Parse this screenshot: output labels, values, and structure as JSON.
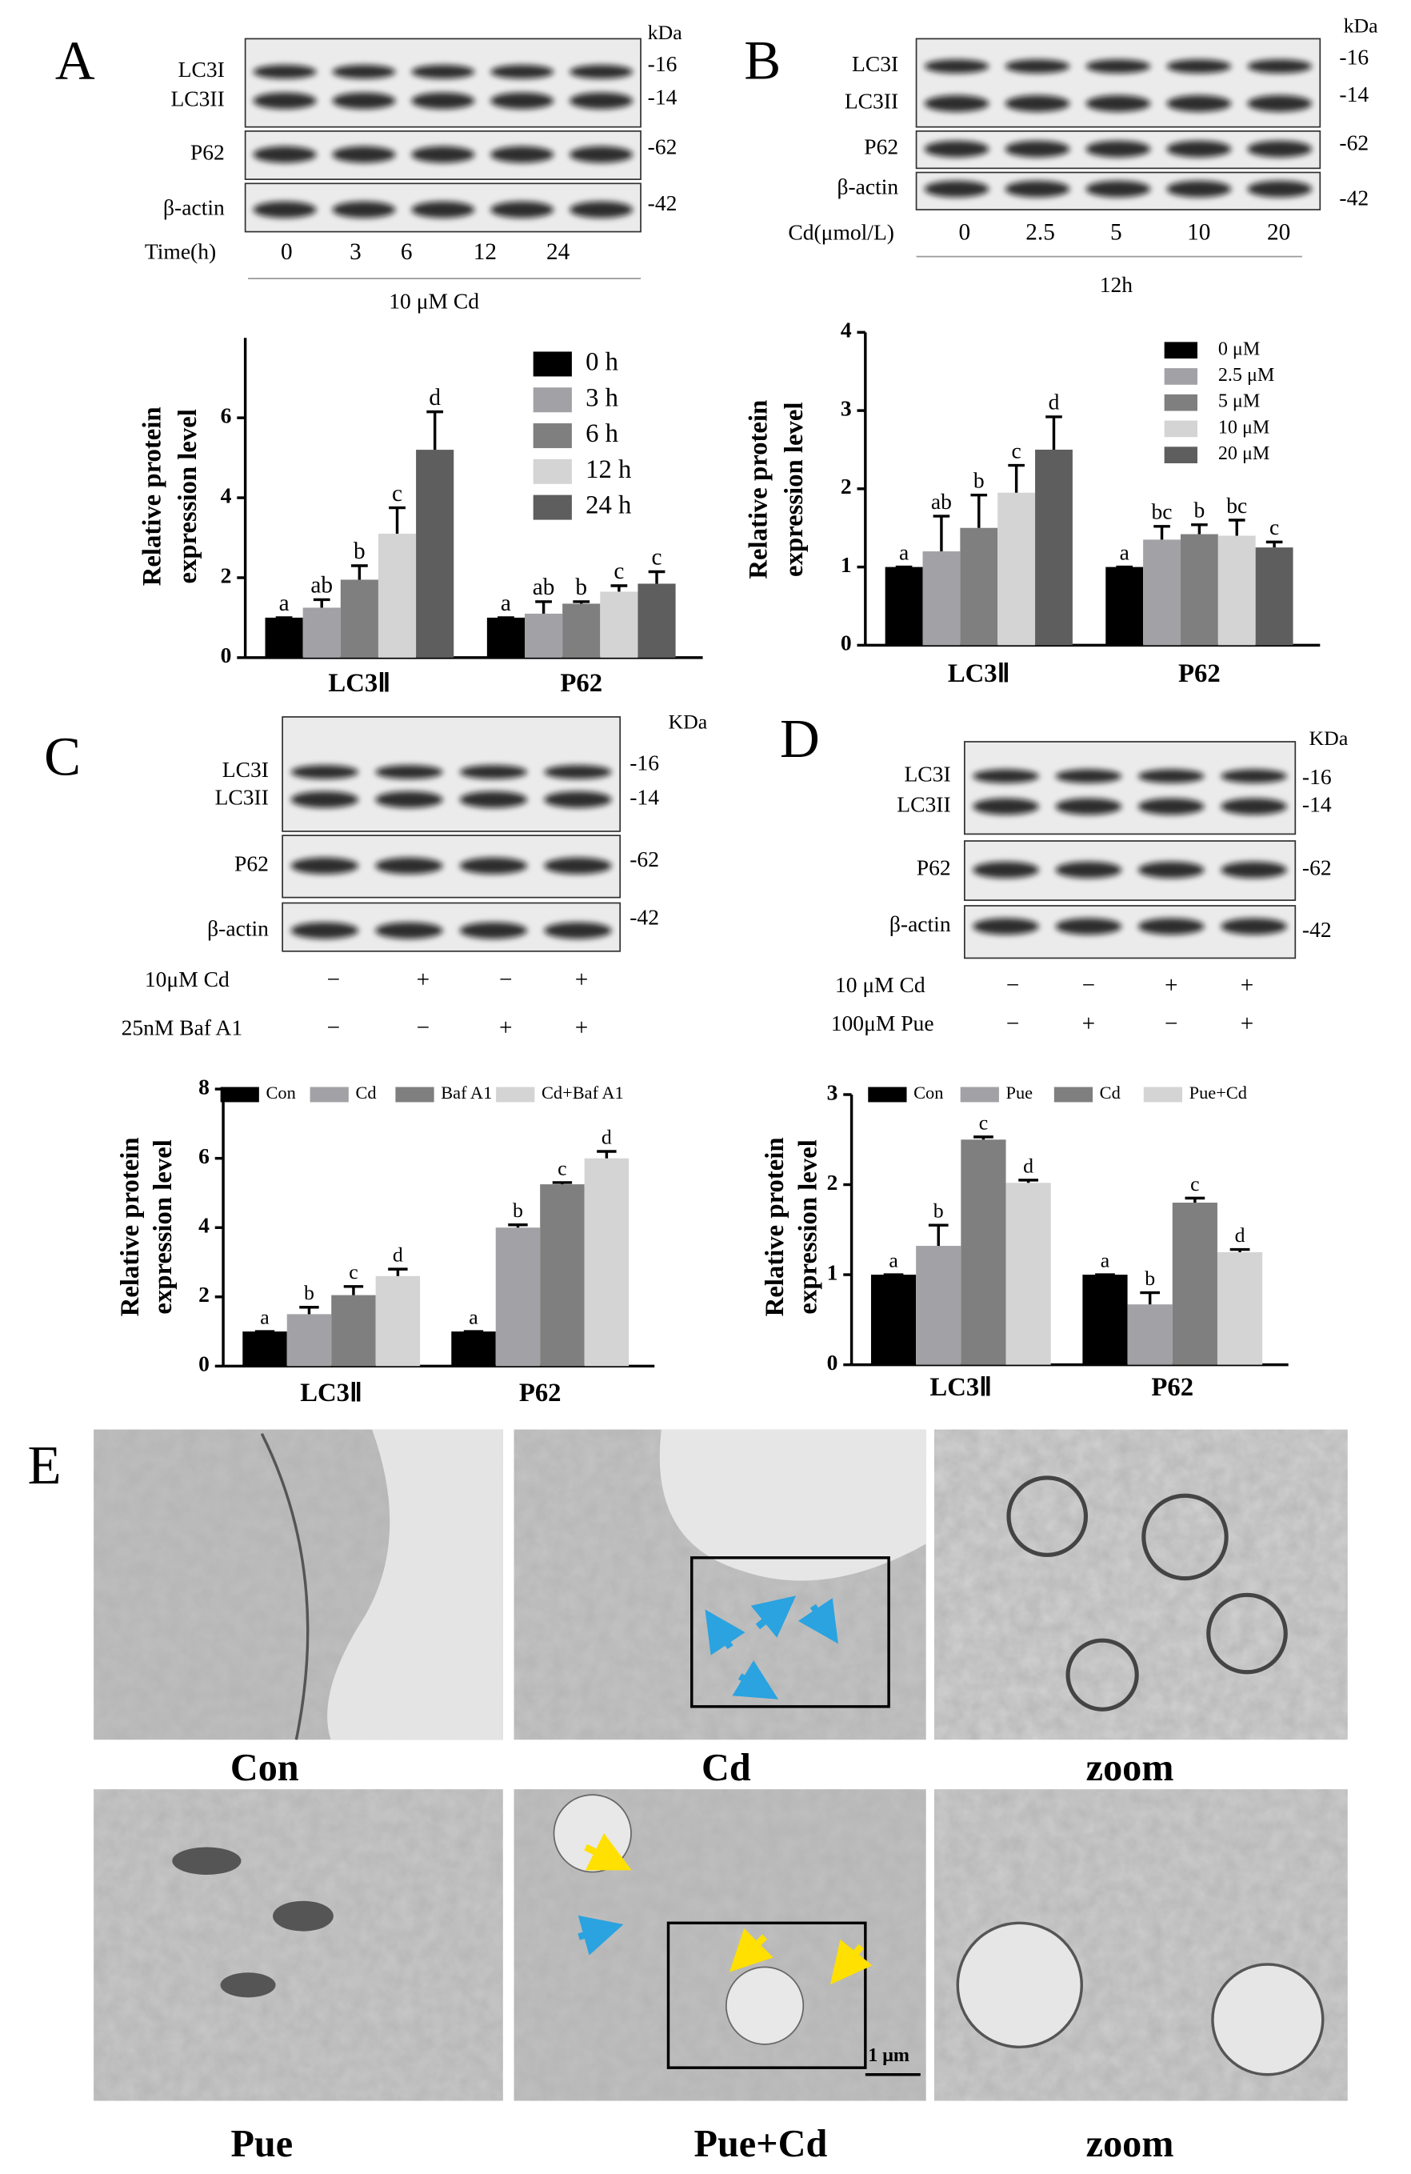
{
  "chart_data": [
    {
      "type": "bar",
      "categories": [
        "LC3Ⅱ",
        "P62"
      ],
      "ylabel": [
        "Relative protein",
        "expression level"
      ],
      "ylim": [
        0,
        8
      ],
      "yticks": [
        0,
        2,
        4,
        6
      ],
      "legend": "upper right",
      "series": [
        {
          "name": "0 h",
          "color": "#000000",
          "values": [
            1,
            1
          ],
          "errors": [
            0,
            0
          ],
          "letters": [
            "a",
            "a"
          ]
        },
        {
          "name": "3 h",
          "color": "#a2a2a6",
          "values": [
            1.25,
            1.1
          ],
          "errors": [
            0.2,
            0.3
          ],
          "letters": [
            "ab",
            "ab"
          ]
        },
        {
          "name": "6 h",
          "color": "#7f7f7f",
          "values": [
            1.95,
            1.35
          ],
          "errors": [
            0.35,
            0.05
          ],
          "letters": [
            "b",
            "b"
          ]
        },
        {
          "name": "12 h",
          "color": "#d4d4d4",
          "values": [
            3.1,
            1.65
          ],
          "errors": [
            0.65,
            0.15
          ],
          "letters": [
            "c",
            "c"
          ]
        },
        {
          "name": "24 h",
          "color": "#5e5e5e",
          "values": [
            5.2,
            1.85
          ],
          "errors": [
            0.95,
            0.3
          ],
          "letters": [
            "d",
            "c"
          ]
        }
      ]
    },
    {
      "type": "bar",
      "categories": [
        "LC3Ⅱ",
        "P62"
      ],
      "ylabel": [
        "Relative protein",
        "expression level"
      ],
      "ylim": [
        0,
        4
      ],
      "yticks": [
        0,
        1,
        2,
        3,
        4
      ],
      "legend": "upper right",
      "series": [
        {
          "name": "0 μM",
          "color": "#000000",
          "values": [
            1,
            1
          ],
          "errors": [
            0,
            0
          ],
          "letters": [
            "a",
            "a"
          ]
        },
        {
          "name": "2.5 μM",
          "color": "#a2a2a6",
          "values": [
            1.2,
            1.35
          ],
          "errors": [
            0.45,
            0.17
          ],
          "letters": [
            "ab",
            "bc"
          ]
        },
        {
          "name": "5 μM",
          "color": "#7f7f7f",
          "values": [
            1.5,
            1.42
          ],
          "errors": [
            0.42,
            0.12
          ],
          "letters": [
            "b",
            "b"
          ]
        },
        {
          "name": "10 μM",
          "color": "#d4d4d4",
          "values": [
            1.95,
            1.4
          ],
          "errors": [
            0.35,
            0.2
          ],
          "letters": [
            "c",
            "bc"
          ]
        },
        {
          "name": "20 μM",
          "color": "#5e5e5e",
          "values": [
            2.5,
            1.25
          ],
          "errors": [
            0.42,
            0.07
          ],
          "letters": [
            "d",
            "c"
          ]
        }
      ]
    },
    {
      "type": "bar",
      "categories": [
        "LC3Ⅱ",
        "P62"
      ],
      "ylabel": [
        "Relative protein",
        "expression level"
      ],
      "ylim": [
        0,
        8
      ],
      "yticks": [
        0,
        2,
        4,
        6,
        8
      ],
      "legend": "top",
      "series": [
        {
          "name": "Con",
          "color": "#000000",
          "values": [
            1,
            1
          ],
          "errors": [
            0,
            0
          ],
          "letters": [
            "a",
            "a"
          ]
        },
        {
          "name": "Cd",
          "color": "#a2a2a6",
          "values": [
            1.5,
            4.0
          ],
          "errors": [
            0.2,
            0.08
          ],
          "letters": [
            "b",
            "b"
          ]
        },
        {
          "name": "Baf A1",
          "color": "#7f7f7f",
          "values": [
            2.05,
            5.25
          ],
          "errors": [
            0.25,
            0.05
          ],
          "letters": [
            "c",
            "c"
          ]
        },
        {
          "name": "Cd+Baf A1",
          "color": "#d4d4d4",
          "values": [
            2.6,
            6.0
          ],
          "errors": [
            0.2,
            0.2
          ],
          "letters": [
            "d",
            "d"
          ]
        }
      ]
    },
    {
      "type": "bar",
      "categories": [
        "LC3Ⅱ",
        "P62"
      ],
      "ylabel": [
        "Relative protein",
        "expression level"
      ],
      "ylim": [
        0,
        3
      ],
      "yticks": [
        0,
        1,
        2,
        3
      ],
      "legend": "top",
      "series": [
        {
          "name": "Con",
          "color": "#000000",
          "values": [
            1,
            1
          ],
          "errors": [
            0,
            0
          ],
          "letters": [
            "a",
            "a"
          ]
        },
        {
          "name": "Pue",
          "color": "#a2a2a6",
          "values": [
            1.32,
            0.67
          ],
          "errors": [
            0.23,
            0.13
          ],
          "letters": [
            "b",
            "b"
          ]
        },
        {
          "name": "Cd",
          "color": "#7f7f7f",
          "values": [
            2.5,
            1.8
          ],
          "errors": [
            0.03,
            0.05
          ],
          "letters": [
            "c",
            "c"
          ]
        },
        {
          "name": "Pue+Cd",
          "color": "#d4d4d4",
          "values": [
            2.02,
            1.25
          ],
          "errors": [
            0.03,
            0.03
          ],
          "letters": [
            "d",
            "d"
          ]
        }
      ]
    }
  ],
  "blots": [
    {
      "panel": "A",
      "kda": "kDa",
      "rows": [
        {
          "labels": [
            "LC3I",
            "LC3II"
          ],
          "markers": [
            "-16",
            "-14"
          ]
        },
        {
          "labels": [
            "P62"
          ],
          "markers": [
            "-62"
          ]
        },
        {
          "labels": [
            "β-actin"
          ],
          "markers": [
            "-42"
          ]
        }
      ],
      "conditions": [
        {
          "label": "Time(h)",
          "lanes": [
            "0",
            "3",
            "6",
            "12",
            "24"
          ]
        }
      ],
      "footer": "10 μM Cd"
    },
    {
      "panel": "B",
      "kda": "kDa",
      "rows": [
        {
          "labels": [
            "LC3I",
            "LC3II"
          ],
          "markers": [
            "-16",
            "-14"
          ]
        },
        {
          "labels": [
            "P62"
          ],
          "markers": [
            "-62"
          ]
        },
        {
          "labels": [
            "β-actin"
          ],
          "markers": [
            "-42"
          ]
        }
      ],
      "conditions": [
        {
          "label": "Cd(μmol/L)",
          "lanes": [
            "0",
            "2.5",
            "5",
            "10",
            "20"
          ]
        }
      ],
      "footer": "12h"
    },
    {
      "panel": "C",
      "kda": "KDa",
      "rows": [
        {
          "labels": [
            "LC3I",
            "LC3II"
          ],
          "markers": [
            "-16",
            "-14"
          ]
        },
        {
          "labels": [
            "P62"
          ],
          "markers": [
            "-62"
          ]
        },
        {
          "labels": [
            "β-actin"
          ],
          "markers": [
            "-42"
          ]
        }
      ],
      "conditions": [
        {
          "label": "10μM Cd",
          "lanes": [
            "−",
            "+",
            "−",
            "+"
          ]
        },
        {
          "label": "25nM Baf A1",
          "lanes": [
            "−",
            "−",
            "+",
            "+"
          ]
        }
      ]
    },
    {
      "panel": "D",
      "kda": "KDa",
      "rows": [
        {
          "labels": [
            "LC3I",
            "LC3II"
          ],
          "markers": [
            "-16",
            "-14"
          ]
        },
        {
          "labels": [
            "P62"
          ],
          "markers": [
            "-62"
          ]
        },
        {
          "labels": [
            "β-actin"
          ],
          "markers": [
            "-42"
          ]
        }
      ],
      "conditions": [
        {
          "label": "10 μM Cd",
          "lanes": [
            "−",
            "−",
            "+",
            "+"
          ]
        },
        {
          "label": "100μM Pue",
          "lanes": [
            "−",
            "+",
            "−",
            "+"
          ]
        }
      ]
    }
  ],
  "em": {
    "panel": "E",
    "labels": [
      "Con",
      "Cd",
      "zoom",
      "Pue",
      "Pue+Cd",
      "zoom"
    ],
    "scale_bar": "1 μm"
  }
}
